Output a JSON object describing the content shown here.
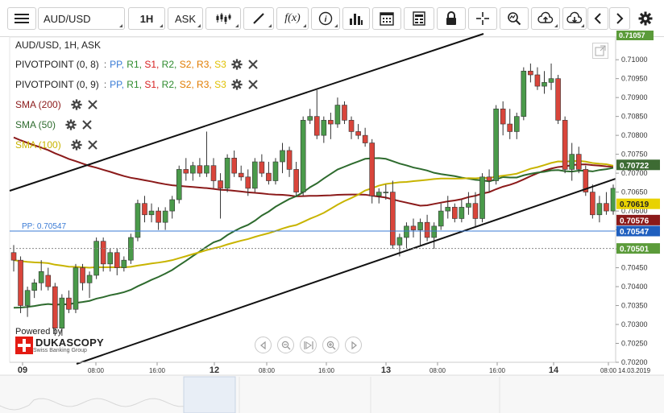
{
  "toolbar": {
    "symbol": "AUD/USD",
    "timeframe": "1H",
    "price_type": "ASK",
    "buttons": [
      "menu-icon",
      "chart-type-icon",
      "draw-line-icon",
      "indicator-fx-icon",
      "info-icon",
      "volume-bars-icon",
      "calendar-icon",
      "report-icon",
      "lock-icon",
      "crosshair-icon",
      "zoom-icon",
      "upload-icon",
      "download-icon",
      "prev-icon",
      "next-icon",
      "settings-icon"
    ]
  },
  "legend": {
    "title": "AUD/USD, 1H, ASK",
    "pivot1": {
      "name": "PIVOTPOINT (0, 8)"
    },
    "pivot2": {
      "name": "PIVOTPOINT (0, 9)"
    },
    "pivot_sep": ":",
    "pivot_labels": [
      {
        "label": "PP",
        "color": "#3a7bd5"
      },
      {
        "label": "R1",
        "color": "#2e8b2e"
      },
      {
        "label": "S1",
        "color": "#d62020"
      },
      {
        "label": "R2",
        "color": "#2e8b2e"
      },
      {
        "label": "S2",
        "color": "#e07b00"
      },
      {
        "label": "R3",
        "color": "#e07b00"
      },
      {
        "label": "S3",
        "color": "#e0c000"
      }
    ],
    "sma200": {
      "name": "SMA (200)",
      "color": "#8b1a1a"
    },
    "sma50": {
      "name": "SMA (50)",
      "color": "#2e6b2e"
    },
    "sma100": {
      "name": "SMA (100)",
      "color": "#c8b400"
    }
  },
  "pp_line_label": "PP: 0.70547",
  "price_axis": {
    "ticks": [
      "0.71000",
      "0.70950",
      "0.70900",
      "0.70850",
      "0.70800",
      "0.70750",
      "0.70700",
      "0.70650",
      "0.70600",
      "0.70550",
      "0.70500",
      "0.70450",
      "0.70400",
      "0.70350",
      "0.70300",
      "0.70250",
      "0.70200"
    ],
    "top_badge": "0.71057",
    "badges": [
      {
        "value": "0.70722",
        "bg": "#3d6b33",
        "fg": "#ffffff"
      },
      {
        "value": "0.70619",
        "bg": "#e8d200",
        "fg": "#222222"
      },
      {
        "value": "0.70576",
        "bg": "#8b1a1a",
        "fg": "#ffffff"
      },
      {
        "value": "0.70547",
        "bg": "#1f5fbf",
        "fg": "#ffffff"
      },
      {
        "value": "0.70501",
        "bg": "#5b9b3a",
        "fg": "#ffffff"
      }
    ]
  },
  "time_axis": {
    "labels": [
      {
        "text": "09",
        "bold": true
      },
      {
        "text": "08:00",
        "bold": false
      },
      {
        "text": "16:00",
        "bold": false
      },
      {
        "text": "12",
        "bold": true
      },
      {
        "text": "08:00",
        "bold": false
      },
      {
        "text": "16:00",
        "bold": false
      },
      {
        "text": "13",
        "bold": true
      },
      {
        "text": "08:00",
        "bold": false
      },
      {
        "text": "16:00",
        "bold": false
      },
      {
        "text": "14",
        "bold": true
      },
      {
        "text": "08:00",
        "bold": false
      }
    ],
    "current_date": "14.03.2019"
  },
  "branding": {
    "powered": "Powered by",
    "name": "DUKASCOPY",
    "sub": "Swiss Banking Group"
  },
  "colors": {
    "up": "#4a9a4a",
    "down": "#d9453b",
    "channel": "#111111",
    "pp_line": "#3a7bd5"
  },
  "chart_data": {
    "type": "candlestick",
    "price_range": [
      0.702,
      0.7106
    ],
    "candles": [
      [
        0.7049,
        0.7051,
        0.7044,
        0.7047
      ],
      [
        0.7047,
        0.7048,
        0.7033,
        0.7035
      ],
      [
        0.7035,
        0.704,
        0.7032,
        0.7039
      ],
      [
        0.7039,
        0.7042,
        0.7037,
        0.7041
      ],
      [
        0.7041,
        0.7047,
        0.7039,
        0.7044
      ],
      [
        0.7043,
        0.7045,
        0.7039,
        0.704
      ],
      [
        0.704,
        0.7041,
        0.7027,
        0.7029
      ],
      [
        0.7029,
        0.7038,
        0.7027,
        0.7037
      ],
      [
        0.7037,
        0.7039,
        0.7033,
        0.7034
      ],
      [
        0.7034,
        0.7046,
        0.7033,
        0.7045
      ],
      [
        0.7045,
        0.7046,
        0.7039,
        0.7041
      ],
      [
        0.7041,
        0.7044,
        0.7037,
        0.7043
      ],
      [
        0.7043,
        0.7053,
        0.7042,
        0.7052
      ],
      [
        0.7052,
        0.7053,
        0.7044,
        0.7046
      ],
      [
        0.7046,
        0.705,
        0.7044,
        0.7049
      ],
      [
        0.7049,
        0.705,
        0.7043,
        0.7045
      ],
      [
        0.7045,
        0.7048,
        0.7044,
        0.7047
      ],
      [
        0.7047,
        0.7054,
        0.7046,
        0.7053
      ],
      [
        0.7053,
        0.7063,
        0.7052,
        0.7062
      ],
      [
        0.7062,
        0.7064,
        0.7057,
        0.7059
      ],
      [
        0.7059,
        0.7062,
        0.7057,
        0.706
      ],
      [
        0.706,
        0.7061,
        0.7055,
        0.7057
      ],
      [
        0.7057,
        0.7061,
        0.7055,
        0.706
      ],
      [
        0.706,
        0.7064,
        0.7058,
        0.7063
      ],
      [
        0.7063,
        0.7072,
        0.7062,
        0.7071
      ],
      [
        0.7071,
        0.7074,
        0.7068,
        0.707
      ],
      [
        0.707,
        0.7073,
        0.7068,
        0.7072
      ],
      [
        0.7072,
        0.7074,
        0.7069,
        0.707
      ],
      [
        0.707,
        0.7081,
        0.7069,
        0.7072
      ],
      [
        0.7072,
        0.7074,
        0.7066,
        0.7068
      ],
      [
        0.7068,
        0.707,
        0.7058,
        0.7066
      ],
      [
        0.7066,
        0.7075,
        0.7065,
        0.7074
      ],
      [
        0.7074,
        0.7076,
        0.7069,
        0.707
      ],
      [
        0.707,
        0.7072,
        0.7068,
        0.7069
      ],
      [
        0.7069,
        0.7071,
        0.7064,
        0.7066
      ],
      [
        0.7066,
        0.7074,
        0.7065,
        0.7073
      ],
      [
        0.7073,
        0.7075,
        0.7069,
        0.707
      ],
      [
        0.707,
        0.7073,
        0.7067,
        0.7068
      ],
      [
        0.7068,
        0.7074,
        0.7067,
        0.7073
      ],
      [
        0.7073,
        0.7078,
        0.707,
        0.7076
      ],
      [
        0.7076,
        0.7077,
        0.7069,
        0.7071
      ],
      [
        0.7071,
        0.7073,
        0.7064,
        0.7065
      ],
      [
        0.7065,
        0.7085,
        0.7064,
        0.7084
      ],
      [
        0.7084,
        0.7087,
        0.7083,
        0.7085
      ],
      [
        0.7085,
        0.7092,
        0.7079,
        0.708
      ],
      [
        0.708,
        0.7085,
        0.7078,
        0.7084
      ],
      [
        0.7084,
        0.7086,
        0.7079,
        0.7083
      ],
      [
        0.7083,
        0.709,
        0.7082,
        0.7088
      ],
      [
        0.7088,
        0.7089,
        0.7083,
        0.7084
      ],
      [
        0.7084,
        0.7085,
        0.7079,
        0.7081
      ],
      [
        0.7081,
        0.7083,
        0.7079,
        0.708
      ],
      [
        0.708,
        0.7082,
        0.7077,
        0.7078
      ],
      [
        0.7078,
        0.7079,
        0.7062,
        0.7064
      ],
      [
        0.7064,
        0.7066,
        0.7062,
        0.7065
      ],
      [
        0.7065,
        0.7067,
        0.7063,
        0.7065
      ],
      [
        0.7065,
        0.7068,
        0.705,
        0.7051
      ],
      [
        0.7051,
        0.7054,
        0.7048,
        0.7053
      ],
      [
        0.7053,
        0.7057,
        0.705,
        0.7056
      ],
      [
        0.7056,
        0.7058,
        0.7053,
        0.7055
      ],
      [
        0.7055,
        0.7058,
        0.7051,
        0.7057
      ],
      [
        0.7057,
        0.7059,
        0.7052,
        0.7053
      ],
      [
        0.7053,
        0.7057,
        0.705,
        0.7056
      ],
      [
        0.7056,
        0.7062,
        0.7055,
        0.706
      ],
      [
        0.706,
        0.7064,
        0.7058,
        0.7061
      ],
      [
        0.7061,
        0.7062,
        0.7057,
        0.7058
      ],
      [
        0.7058,
        0.7063,
        0.7057,
        0.7061
      ],
      [
        0.7061,
        0.7065,
        0.7059,
        0.7062
      ],
      [
        0.7062,
        0.7065,
        0.7056,
        0.7058
      ],
      [
        0.7058,
        0.707,
        0.7057,
        0.7069
      ],
      [
        0.7069,
        0.7071,
        0.7065,
        0.7068
      ],
      [
        0.7068,
        0.7088,
        0.7067,
        0.7087
      ],
      [
        0.7087,
        0.7089,
        0.708,
        0.7083
      ],
      [
        0.7083,
        0.7087,
        0.7079,
        0.7081
      ],
      [
        0.7081,
        0.7086,
        0.7079,
        0.7085
      ],
      [
        0.7085,
        0.7098,
        0.7084,
        0.7097
      ],
      [
        0.7097,
        0.7099,
        0.7094,
        0.7096
      ],
      [
        0.7096,
        0.7098,
        0.7092,
        0.7093
      ],
      [
        0.7093,
        0.7097,
        0.7091,
        0.7094
      ],
      [
        0.7094,
        0.7099,
        0.7092,
        0.7095
      ],
      [
        0.7095,
        0.7096,
        0.7083,
        0.7084
      ],
      [
        0.7084,
        0.7085,
        0.707,
        0.7071
      ],
      [
        0.7071,
        0.7078,
        0.7068,
        0.7075
      ],
      [
        0.7075,
        0.7077,
        0.707,
        0.7071
      ],
      [
        0.7071,
        0.7072,
        0.7064,
        0.7065
      ],
      [
        0.7065,
        0.7067,
        0.7058,
        0.7059
      ],
      [
        0.7059,
        0.7064,
        0.7057,
        0.7062
      ],
      [
        0.7062,
        0.7065,
        0.7059,
        0.706
      ],
      [
        0.706,
        0.7067,
        0.7059,
        0.7066
      ]
    ]
  }
}
